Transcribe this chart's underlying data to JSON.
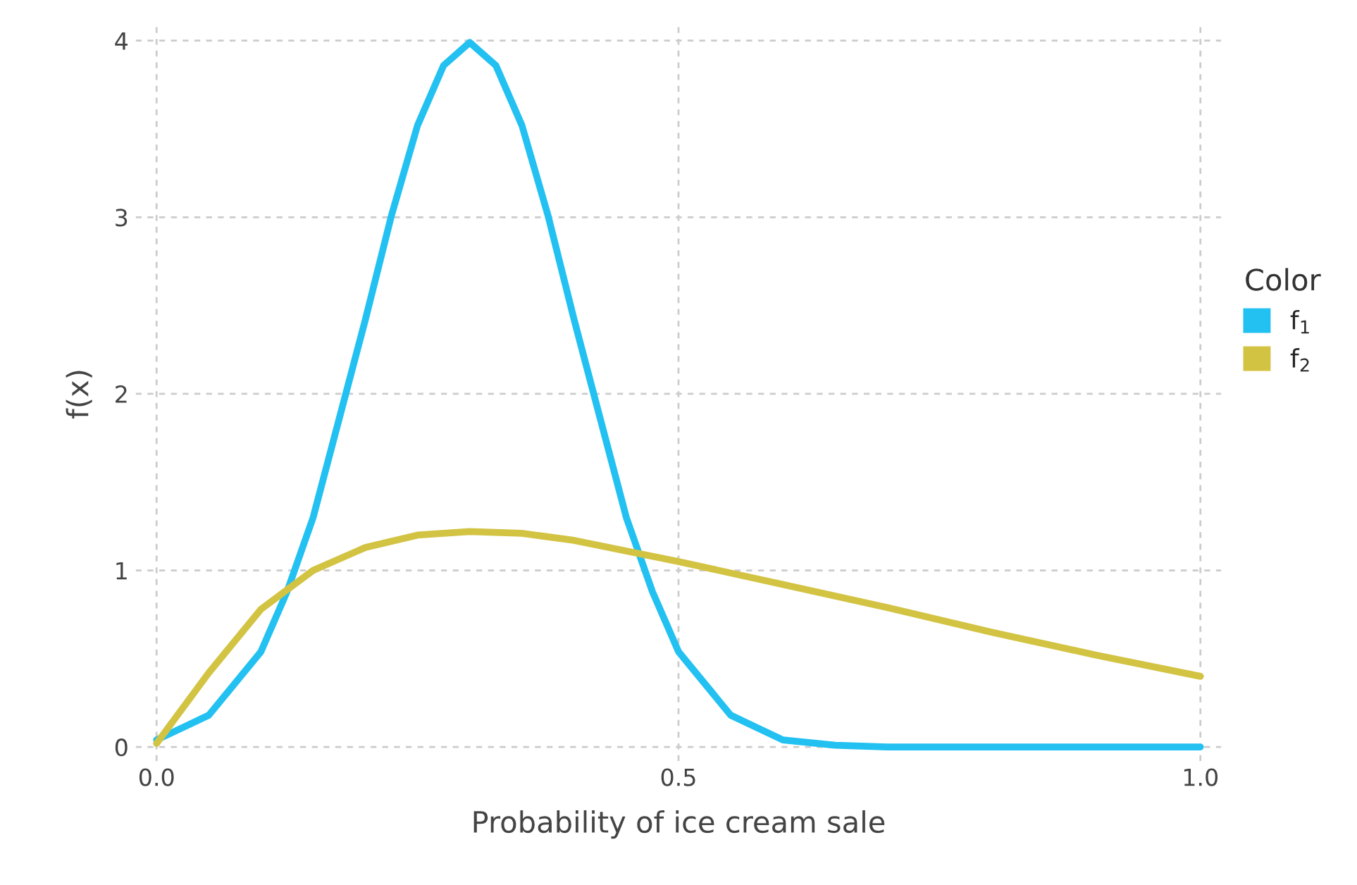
{
  "chart_data": {
    "type": "line",
    "xlabel": "Probability of ice cream sale",
    "ylabel": "f(x)",
    "legend_title": "Color",
    "legend": "right",
    "grid": true,
    "line_style": "solid",
    "marker": "none",
    "xlim": [
      -0.02,
      1.02
    ],
    "ylim": [
      -0.08,
      4.08
    ],
    "xticks": [
      {
        "value": 0,
        "label": "0.0"
      },
      {
        "value": 0.5,
        "label": "0.5"
      },
      {
        "value": 1,
        "label": "1.0"
      }
    ],
    "yticks": [
      0,
      1,
      2,
      3,
      4
    ],
    "series": [
      {
        "name": "f$_{1}$",
        "color": "#22c1f1",
        "x": [
          0,
          0.05,
          0.1,
          0.125,
          0.15,
          0.175,
          0.2,
          0.225,
          0.25,
          0.275,
          0.3,
          0.325,
          0.35,
          0.375,
          0.4,
          0.425,
          0.45,
          0.475,
          0.5,
          0.55,
          0.6,
          0.65,
          0.7,
          0.8,
          0.9,
          1.0
        ],
        "values": [
          0.04,
          0.18,
          0.54,
          0.88,
          1.3,
          1.86,
          2.42,
          3.01,
          3.52,
          3.86,
          3.99,
          3.86,
          3.52,
          3.01,
          2.42,
          1.86,
          1.3,
          0.88,
          0.54,
          0.18,
          0.04,
          0.01,
          0,
          0,
          0,
          0
        ]
      },
      {
        "name": "f$_{2}$",
        "color": "#d3c343",
        "x": [
          0,
          0.05,
          0.1,
          0.15,
          0.2,
          0.25,
          0.3,
          0.35,
          0.4,
          0.45,
          0.5,
          0.6,
          0.7,
          0.8,
          0.9,
          1.0
        ],
        "values": [
          0.02,
          0.42,
          0.78,
          1.0,
          1.13,
          1.2,
          1.22,
          1.21,
          1.17,
          1.11,
          1.05,
          0.92,
          0.79,
          0.65,
          0.52,
          0.4
        ]
      }
    ]
  }
}
